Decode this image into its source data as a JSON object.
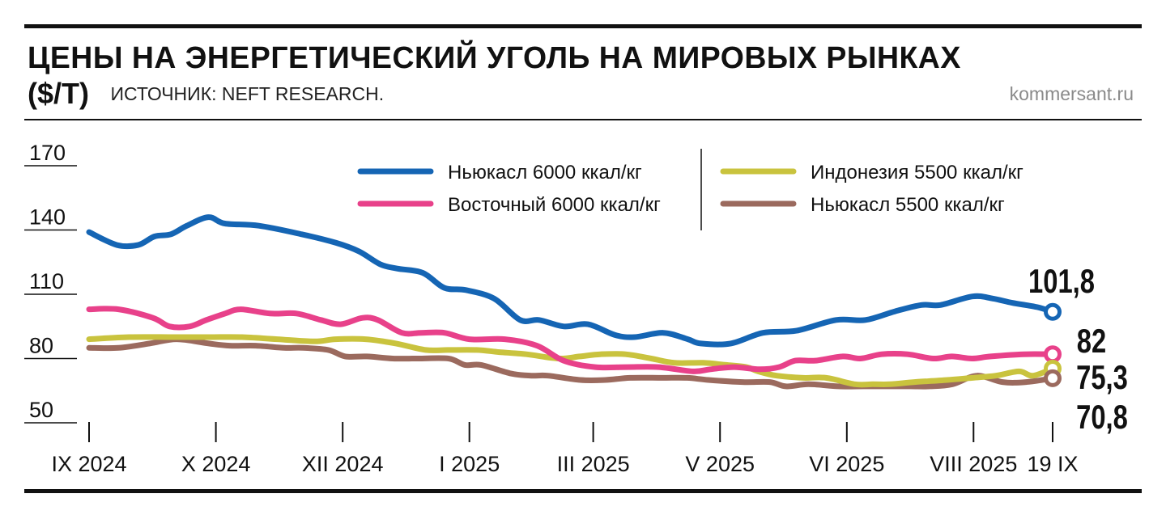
{
  "header": {
    "title": "ЦЕНЫ НА ЭНЕРГЕТИЧЕСКИЙ УГОЛЬ НА МИРОВЫХ РЫНКАХ",
    "unit": "($/Т)",
    "source": "ИСТОЧНИК: NEFT RESEARCH.",
    "site": "kommersant.ru"
  },
  "chart_data": {
    "type": "line",
    "title": "ЦЕНЫ НА ЭНЕРГЕТИЧЕСКИЙ УГОЛЬ НА МИРОВЫХ РЫНКАХ",
    "ylabel": "$/т",
    "xlabel": "",
    "ylim": [
      50,
      170
    ],
    "yticks": [
      50,
      80,
      110,
      140,
      170
    ],
    "xlim": [
      0,
      1
    ],
    "xticks": [
      {
        "label": "IX 2024",
        "x": 0
      },
      {
        "label": "X 2024",
        "x": 0.1316
      },
      {
        "label": "XII 2024",
        "x": 0.2632
      },
      {
        "label": "I 2025",
        "x": 0.3947
      },
      {
        "label": "III 2025",
        "x": 0.5232
      },
      {
        "label": "V 2025",
        "x": 0.6548
      },
      {
        "label": "VI 2025",
        "x": 0.7864
      },
      {
        "label": "VIII 2025",
        "x": 0.9179
      },
      {
        "label": "19 IX",
        "x": 1
      }
    ],
    "series": [
      {
        "name": "Ньюкасл 6000 ккал/кг",
        "color": "#1565b4",
        "last_label": "101,8",
        "x": [
          0,
          0.0289,
          0.0509,
          0.0679,
          0.0849,
          0.1015,
          0.1239,
          0.1409,
          0.1761,
          0.2207,
          0.2564,
          0.2802,
          0.3022,
          0.3197,
          0.3463,
          0.3686,
          0.3905,
          0.4203,
          0.4474,
          0.4669,
          0.4928,
          0.5177,
          0.5458,
          0.5658,
          0.596,
          0.6214,
          0.635,
          0.6659,
          0.6994,
          0.7341,
          0.7753,
          0.8057,
          0.8362,
          0.8638,
          0.8836,
          0.9168,
          0.9378,
          0.958,
          0.9839,
          1
        ],
        "y": [
          139,
          133,
          133,
          137,
          138,
          142,
          146,
          143,
          142,
          138,
          134,
          130,
          124,
          122,
          120,
          113,
          112,
          108,
          98,
          98,
          95,
          96,
          91,
          90,
          92,
          89,
          87,
          87,
          92,
          93,
          98,
          98,
          102,
          105,
          105,
          109,
          108,
          106,
          104,
          101.8
        ]
      },
      {
        "name": "Восточный 6000 ккал/кг",
        "color": "#e8418a",
        "last_label": "82",
        "x": [
          0,
          0.0306,
          0.0662,
          0.0836,
          0.1044,
          0.1217,
          0.1413,
          0.1575,
          0.1877,
          0.2152,
          0.2406,
          0.2609,
          0.2839,
          0.2997,
          0.3247,
          0.3446,
          0.3687,
          0.3946,
          0.4315,
          0.4649,
          0.4924,
          0.5253,
          0.5575,
          0.5913,
          0.6269,
          0.6449,
          0.6694,
          0.6961,
          0.716,
          0.7329,
          0.7538,
          0.7822,
          0.8004,
          0.8225,
          0.8493,
          0.876,
          0.8954,
          0.9163,
          0.9357,
          0.97,
          1
        ],
        "y": [
          103,
          103,
          99,
          95,
          95,
          98,
          101,
          103,
          101,
          101,
          98,
          96,
          99,
          98,
          92,
          92,
          92,
          89,
          89,
          86,
          79,
          76,
          76,
          76,
          74,
          75,
          76,
          75,
          76,
          79,
          79,
          81,
          80,
          82,
          82,
          80,
          81,
          80,
          81,
          82,
          82
        ]
      },
      {
        "name": "Индонезия 5500 ккал/кг",
        "color": "#c9c33e",
        "last_label": "75,3",
        "x": [
          0,
          0.0415,
          0.088,
          0.1248,
          0.1588,
          0.1953,
          0.2339,
          0.2558,
          0.2869,
          0.3186,
          0.3493,
          0.3723,
          0.4022,
          0.4259,
          0.4538,
          0.4871,
          0.5094,
          0.5307,
          0.5567,
          0.5834,
          0.6073,
          0.6375,
          0.6609,
          0.6822,
          0.6944,
          0.7135,
          0.7414,
          0.7649,
          0.7948,
          0.8134,
          0.8313,
          0.8566,
          0.8907,
          0.9168,
          0.9411,
          0.9653,
          0.9794,
          1
        ],
        "y": [
          89,
          90,
          90,
          90,
          90,
          89,
          88,
          89,
          89,
          87,
          84,
          84,
          84,
          83,
          82,
          80,
          81,
          82,
          82,
          80,
          78,
          78,
          77,
          76,
          74,
          72,
          71,
          71,
          68,
          68,
          68,
          69,
          70,
          71,
          72,
          74,
          72,
          75.3
        ]
      },
      {
        "name": "Ньюкасл 5500 ккал/кг",
        "color": "#9b6a5e",
        "last_label": "70,8",
        "x": [
          0,
          0.0305,
          0.0627,
          0.0909,
          0.1244,
          0.1461,
          0.1729,
          0.2024,
          0.2222,
          0.2483,
          0.2659,
          0.2883,
          0.3151,
          0.3413,
          0.3731,
          0.39,
          0.4067,
          0.4379,
          0.4589,
          0.4761,
          0.5098,
          0.5358,
          0.5617,
          0.595,
          0.6206,
          0.6427,
          0.6782,
          0.7065,
          0.7232,
          0.7468,
          0.7777,
          0.8043,
          0.8269,
          0.8526,
          0.8727,
          0.896,
          0.9217,
          0.9479,
          0.9725,
          1
        ],
        "y": [
          85,
          85,
          87,
          89,
          87,
          86,
          86,
          85,
          85,
          84,
          81,
          81,
          80,
          80,
          80,
          77,
          77,
          73,
          72,
          72,
          70,
          70,
          71,
          71,
          71,
          70,
          69,
          69,
          67,
          68,
          67,
          67,
          67,
          67,
          67,
          68,
          72,
          69,
          69,
          70.8
        ]
      }
    ],
    "legend": "top-right, two columns"
  }
}
